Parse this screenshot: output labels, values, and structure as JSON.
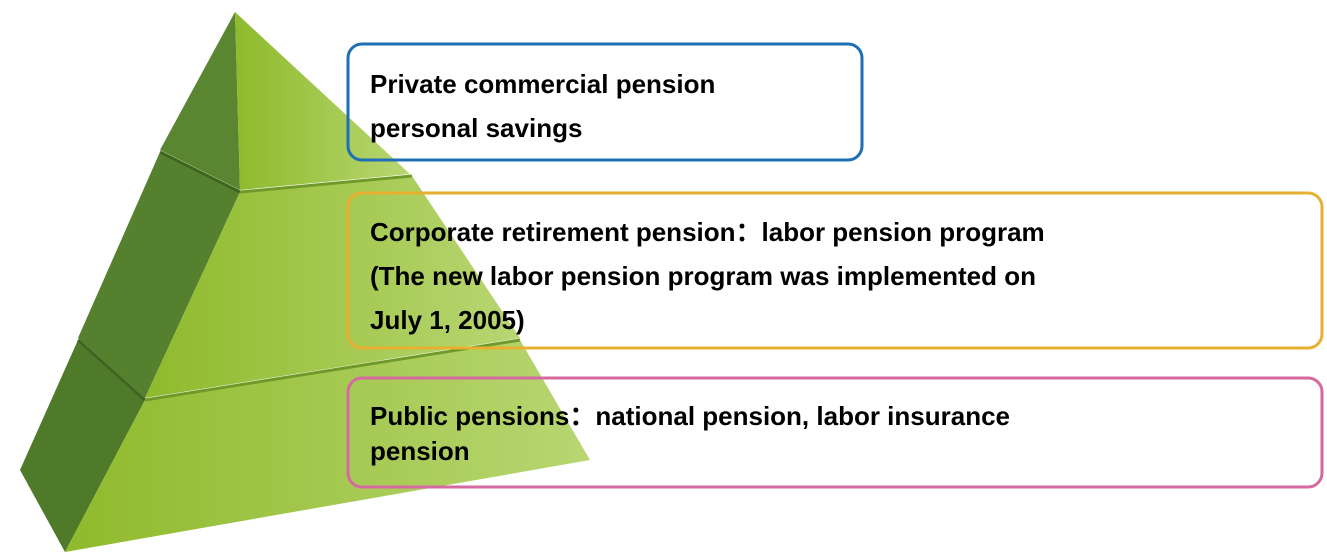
{
  "tiers": [
    {
      "lines": [
        "Private commercial pension",
        "personal savings"
      ]
    },
    {
      "lines": [
        "Corporate retirement pension：labor pension program",
        "(The new labor pension program was implemented on",
        "July 1, 2005)"
      ]
    },
    {
      "lines": [
        "Public pensions：national pension, labor insurance",
        "pension"
      ]
    }
  ]
}
